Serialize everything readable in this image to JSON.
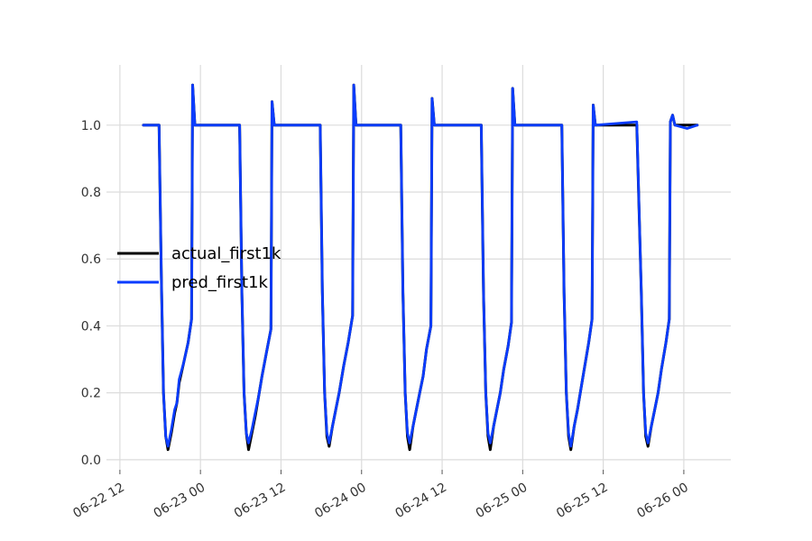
{
  "chart_data": {
    "type": "line",
    "x_axis": {
      "kind": "datetime",
      "tick_labels": [
        "06-22 12",
        "06-23 00",
        "06-23 12",
        "06-24 00",
        "06-24 12",
        "06-25 00",
        "06-25 12",
        "06-26 00"
      ],
      "range": [
        "2022-06-22T10:00",
        "2022-06-26T07:00"
      ]
    },
    "y_axis": {
      "tick_labels": [
        "0.0",
        "0.2",
        "0.4",
        "0.6",
        "0.8",
        "1.0"
      ],
      "ticks": [
        0.0,
        0.2,
        0.4,
        0.6,
        0.8,
        1.0
      ],
      "ylim": [
        -0.03,
        1.18
      ]
    },
    "grid": true,
    "legend": {
      "placement": "center-left"
    },
    "series": [
      {
        "name": "actual_first1k",
        "color": "#000000",
        "points": [
          [
            "2022-06-22T15:30",
            1.0
          ],
          [
            "2022-06-22T17:50",
            1.0
          ],
          [
            "2022-06-22T18:10",
            0.55
          ],
          [
            "2022-06-22T18:30",
            0.2
          ],
          [
            "2022-06-22T18:50",
            0.07
          ],
          [
            "2022-06-22T19:10",
            0.03
          ],
          [
            "2022-06-22T19:40",
            0.08
          ],
          [
            "2022-06-22T20:10",
            0.14
          ],
          [
            "2022-06-22T20:30",
            0.17
          ],
          [
            "2022-06-22T20:50",
            0.23
          ],
          [
            "2022-06-22T21:30",
            0.29
          ],
          [
            "2022-06-22T22:10",
            0.35
          ],
          [
            "2022-06-22T22:40",
            0.42
          ],
          [
            "2022-06-22T22:50",
            1.12
          ],
          [
            "2022-06-22T23:10",
            1.0
          ],
          [
            "2022-06-23T05:50",
            1.0
          ],
          [
            "2022-06-23T06:10",
            0.5
          ],
          [
            "2022-06-23T06:30",
            0.2
          ],
          [
            "2022-06-23T06:50",
            0.08
          ],
          [
            "2022-06-23T07:10",
            0.03
          ],
          [
            "2022-06-23T07:40",
            0.08
          ],
          [
            "2022-06-23T08:10",
            0.13
          ],
          [
            "2022-06-23T08:40",
            0.19
          ],
          [
            "2022-06-23T09:10",
            0.25
          ],
          [
            "2022-06-23T09:50",
            0.32
          ],
          [
            "2022-06-23T10:30",
            0.39
          ],
          [
            "2022-06-23T10:40",
            1.07
          ],
          [
            "2022-06-23T11:00",
            1.0
          ],
          [
            "2022-06-23T17:50",
            1.0
          ],
          [
            "2022-06-23T18:10",
            0.5
          ],
          [
            "2022-06-23T18:30",
            0.2
          ],
          [
            "2022-06-23T18:50",
            0.07
          ],
          [
            "2022-06-23T19:10",
            0.04
          ],
          [
            "2022-06-23T19:40",
            0.1
          ],
          [
            "2022-06-23T20:10",
            0.15
          ],
          [
            "2022-06-23T20:40",
            0.2
          ],
          [
            "2022-06-23T21:20",
            0.28
          ],
          [
            "2022-06-23T22:00",
            0.35
          ],
          [
            "2022-06-23T22:40",
            0.43
          ],
          [
            "2022-06-23T22:50",
            1.12
          ],
          [
            "2022-06-23T23:10",
            1.0
          ],
          [
            "2022-06-24T05:50",
            1.0
          ],
          [
            "2022-06-24T06:10",
            0.5
          ],
          [
            "2022-06-24T06:30",
            0.2
          ],
          [
            "2022-06-24T06:50",
            0.07
          ],
          [
            "2022-06-24T07:10",
            0.03
          ],
          [
            "2022-06-24T07:40",
            0.1
          ],
          [
            "2022-06-24T08:10",
            0.15
          ],
          [
            "2022-06-24T08:40",
            0.2
          ],
          [
            "2022-06-24T09:10",
            0.25
          ],
          [
            "2022-06-24T09:40",
            0.33
          ],
          [
            "2022-06-24T10:20",
            0.4
          ],
          [
            "2022-06-24T10:30",
            1.08
          ],
          [
            "2022-06-24T10:50",
            1.0
          ],
          [
            "2022-06-24T17:50",
            1.0
          ],
          [
            "2022-06-24T18:10",
            0.5
          ],
          [
            "2022-06-24T18:30",
            0.2
          ],
          [
            "2022-06-24T18:50",
            0.07
          ],
          [
            "2022-06-24T19:10",
            0.03
          ],
          [
            "2022-06-24T19:40",
            0.1
          ],
          [
            "2022-06-24T20:10",
            0.15
          ],
          [
            "2022-06-24T20:40",
            0.2
          ],
          [
            "2022-06-24T21:10",
            0.27
          ],
          [
            "2022-06-24T21:50",
            0.34
          ],
          [
            "2022-06-24T22:20",
            0.41
          ],
          [
            "2022-06-24T22:30",
            1.11
          ],
          [
            "2022-06-24T22:50",
            1.0
          ],
          [
            "2022-06-25T05:50",
            1.0
          ],
          [
            "2022-06-25T06:10",
            0.5
          ],
          [
            "2022-06-25T06:30",
            0.2
          ],
          [
            "2022-06-25T06:50",
            0.07
          ],
          [
            "2022-06-25T07:10",
            0.03
          ],
          [
            "2022-06-25T07:40",
            0.1
          ],
          [
            "2022-06-25T08:10",
            0.15
          ],
          [
            "2022-06-25T08:40",
            0.21
          ],
          [
            "2022-06-25T09:10",
            0.27
          ],
          [
            "2022-06-25T09:50",
            0.35
          ],
          [
            "2022-06-25T10:20",
            0.42
          ],
          [
            "2022-06-25T10:30",
            1.06
          ],
          [
            "2022-06-25T10:50",
            1.0
          ],
          [
            "2022-06-25T17:00",
            1.0
          ],
          [
            "2022-06-25T17:40",
            0.5
          ],
          [
            "2022-06-25T18:00",
            0.2
          ],
          [
            "2022-06-25T18:20",
            0.07
          ],
          [
            "2022-06-25T18:40",
            0.04
          ],
          [
            "2022-06-25T19:10",
            0.1
          ],
          [
            "2022-06-25T19:40",
            0.15
          ],
          [
            "2022-06-25T20:10",
            0.2
          ],
          [
            "2022-06-25T20:40",
            0.27
          ],
          [
            "2022-06-25T21:20",
            0.35
          ],
          [
            "2022-06-25T21:50",
            0.42
          ],
          [
            "2022-06-25T22:00",
            1.01
          ],
          [
            "2022-06-25T22:20",
            1.03
          ],
          [
            "2022-06-25T22:40",
            1.0
          ],
          [
            "2022-06-26T02:00",
            1.0
          ]
        ]
      },
      {
        "name": "pred_first1k",
        "color": "#0a3cff",
        "points": [
          [
            "2022-06-22T15:30",
            1.0
          ],
          [
            "2022-06-22T17:50",
            1.0
          ],
          [
            "2022-06-22T18:10",
            0.55
          ],
          [
            "2022-06-22T18:30",
            0.2
          ],
          [
            "2022-06-22T18:50",
            0.07
          ],
          [
            "2022-06-22T19:10",
            0.04
          ],
          [
            "2022-06-22T19:40",
            0.09
          ],
          [
            "2022-06-22T20:10",
            0.15
          ],
          [
            "2022-06-22T20:30",
            0.17
          ],
          [
            "2022-06-22T20:50",
            0.24
          ],
          [
            "2022-06-22T21:30",
            0.29
          ],
          [
            "2022-06-22T22:10",
            0.35
          ],
          [
            "2022-06-22T22:40",
            0.42
          ],
          [
            "2022-06-22T22:50",
            1.12
          ],
          [
            "2022-06-22T23:10",
            1.0
          ],
          [
            "2022-06-23T05:50",
            1.0
          ],
          [
            "2022-06-23T06:10",
            0.5
          ],
          [
            "2022-06-23T06:30",
            0.2
          ],
          [
            "2022-06-23T06:50",
            0.08
          ],
          [
            "2022-06-23T07:10",
            0.05
          ],
          [
            "2022-06-23T07:40",
            0.09
          ],
          [
            "2022-06-23T08:10",
            0.14
          ],
          [
            "2022-06-23T08:40",
            0.19
          ],
          [
            "2022-06-23T09:10",
            0.25
          ],
          [
            "2022-06-23T09:50",
            0.32
          ],
          [
            "2022-06-23T10:30",
            0.39
          ],
          [
            "2022-06-23T10:40",
            1.07
          ],
          [
            "2022-06-23T11:00",
            1.0
          ],
          [
            "2022-06-23T17:50",
            1.0
          ],
          [
            "2022-06-23T18:10",
            0.5
          ],
          [
            "2022-06-23T18:30",
            0.2
          ],
          [
            "2022-06-23T18:50",
            0.08
          ],
          [
            "2022-06-23T19:10",
            0.05
          ],
          [
            "2022-06-23T19:40",
            0.1
          ],
          [
            "2022-06-23T20:10",
            0.15
          ],
          [
            "2022-06-23T20:40",
            0.2
          ],
          [
            "2022-06-23T21:20",
            0.28
          ],
          [
            "2022-06-23T22:00",
            0.35
          ],
          [
            "2022-06-23T22:40",
            0.43
          ],
          [
            "2022-06-23T22:50",
            1.12
          ],
          [
            "2022-06-23T23:10",
            1.0
          ],
          [
            "2022-06-24T05:50",
            1.0
          ],
          [
            "2022-06-24T06:10",
            0.5
          ],
          [
            "2022-06-24T06:30",
            0.2
          ],
          [
            "2022-06-24T06:50",
            0.08
          ],
          [
            "2022-06-24T07:10",
            0.05
          ],
          [
            "2022-06-24T07:40",
            0.1
          ],
          [
            "2022-06-24T08:10",
            0.15
          ],
          [
            "2022-06-24T08:40",
            0.2
          ],
          [
            "2022-06-24T09:10",
            0.25
          ],
          [
            "2022-06-24T09:40",
            0.33
          ],
          [
            "2022-06-24T10:20",
            0.4
          ],
          [
            "2022-06-24T10:30",
            1.08
          ],
          [
            "2022-06-24T10:50",
            1.0
          ],
          [
            "2022-06-24T17:50",
            1.0
          ],
          [
            "2022-06-24T18:10",
            0.5
          ],
          [
            "2022-06-24T18:30",
            0.2
          ],
          [
            "2022-06-24T18:50",
            0.08
          ],
          [
            "2022-06-24T19:10",
            0.05
          ],
          [
            "2022-06-24T19:40",
            0.1
          ],
          [
            "2022-06-24T20:10",
            0.15
          ],
          [
            "2022-06-24T20:40",
            0.2
          ],
          [
            "2022-06-24T21:10",
            0.27
          ],
          [
            "2022-06-24T21:50",
            0.34
          ],
          [
            "2022-06-24T22:20",
            0.41
          ],
          [
            "2022-06-24T22:30",
            1.11
          ],
          [
            "2022-06-24T22:50",
            1.0
          ],
          [
            "2022-06-25T05:50",
            1.0
          ],
          [
            "2022-06-25T06:10",
            0.5
          ],
          [
            "2022-06-25T06:30",
            0.2
          ],
          [
            "2022-06-25T06:50",
            0.08
          ],
          [
            "2022-06-25T07:10",
            0.04
          ],
          [
            "2022-06-25T07:40",
            0.1
          ],
          [
            "2022-06-25T08:10",
            0.15
          ],
          [
            "2022-06-25T08:40",
            0.21
          ],
          [
            "2022-06-25T09:10",
            0.27
          ],
          [
            "2022-06-25T09:50",
            0.35
          ],
          [
            "2022-06-25T10:20",
            0.42
          ],
          [
            "2022-06-25T10:30",
            1.06
          ],
          [
            "2022-06-25T10:50",
            1.0
          ],
          [
            "2022-06-25T17:00",
            1.01
          ],
          [
            "2022-06-25T17:40",
            0.5
          ],
          [
            "2022-06-25T18:00",
            0.2
          ],
          [
            "2022-06-25T18:20",
            0.08
          ],
          [
            "2022-06-25T18:40",
            0.05
          ],
          [
            "2022-06-25T19:10",
            0.1
          ],
          [
            "2022-06-25T19:40",
            0.15
          ],
          [
            "2022-06-25T20:10",
            0.2
          ],
          [
            "2022-06-25T20:40",
            0.27
          ],
          [
            "2022-06-25T21:20",
            0.35
          ],
          [
            "2022-06-25T21:50",
            0.42
          ],
          [
            "2022-06-25T22:00",
            1.01
          ],
          [
            "2022-06-25T22:20",
            1.03
          ],
          [
            "2022-06-25T22:40",
            1.0
          ],
          [
            "2022-06-26T00:30",
            0.99
          ],
          [
            "2022-06-26T02:00",
            1.0
          ]
        ]
      }
    ]
  }
}
